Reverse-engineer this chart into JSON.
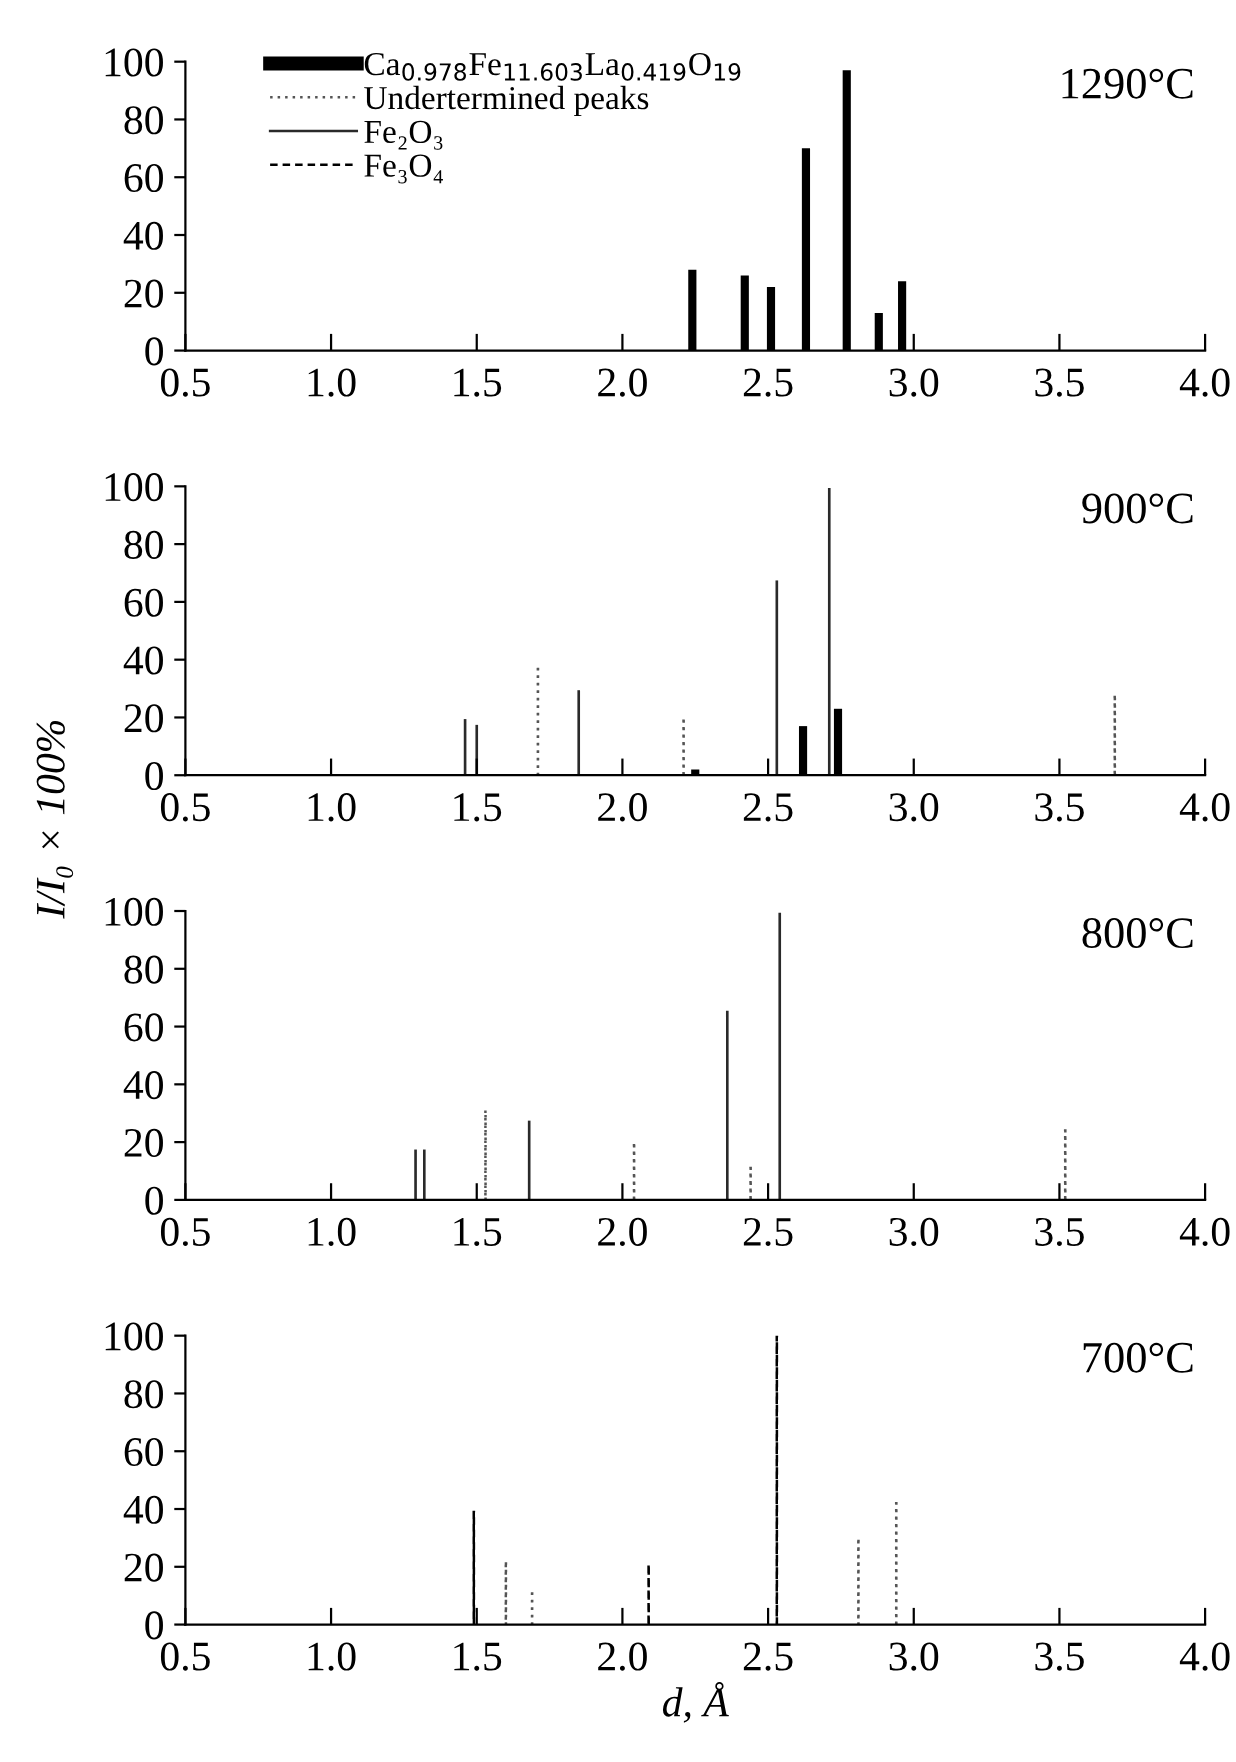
{
  "chart_data": [
    {
      "type": "bar",
      "annotations": [
        "1290°C"
      ],
      "xlim": [
        0.5,
        4.0
      ],
      "xticks": [
        0.5,
        {
          "value": 1,
          "label": "1.0"
        },
        1.5,
        {
          "value": 2,
          "label": "2.0"
        },
        2.5,
        {
          "value": 3,
          "label": "3.0"
        },
        3.5,
        {
          "value": 4,
          "label": "4.0"
        }
      ],
      "ylim": [
        0,
        100
      ],
      "yticks": [
        0,
        20,
        40,
        60,
        80,
        100
      ],
      "grid": false,
      "legend": "top left",
      "series": [
        {
          "name": "Ca$_{0.978}$Fe$_{11.603}$La$_{0.419}$O$_{19}$",
          "color": "#000000",
          "x": [
            2.24,
            2.42,
            2.51,
            2.63,
            2.77,
            2.88,
            2.96
          ],
          "values": [
            28,
            26,
            22,
            70,
            97,
            13,
            24
          ]
        },
        {
          "name": "Undertermined peaks",
          "line_style": "dotted",
          "color": "#555555"
        },
        {
          "name": "Fe₂O₃",
          "line_style": "solid",
          "color": "#2a2a2a"
        },
        {
          "name": "Fe₃O₄",
          "line_style": "dashed",
          "color": "#000000"
        }
      ]
    },
    {
      "type": "bar",
      "annotations": [
        "900°C"
      ],
      "ylabel": "I/I₀ × 100%",
      "xlim": [
        0.5,
        4.0
      ],
      "xticks": [
        0.5,
        {
          "value": 1,
          "label": "1.0"
        },
        1.5,
        {
          "value": 2,
          "label": "2.0"
        },
        2.5,
        {
          "value": 3,
          "label": "3.0"
        },
        3.5,
        {
          "value": 4,
          "label": "4.0"
        }
      ],
      "ylim": [
        0,
        100
      ],
      "yticks": [
        0,
        20,
        40,
        60,
        80,
        100
      ],
      "grid": false,
      "series": [
        {
          "color": "#000000",
          "x": [
            2.25,
            2.62,
            2.74
          ],
          "values": [
            2,
            17,
            23
          ]
        },
        {
          "line_style": "dotted",
          "color": "#555555",
          "x": [
            1.71,
            2.21,
            3.69
          ],
          "values": [
            38,
            20,
            28
          ]
        },
        {
          "line_style": "solid",
          "color": "#2a2a2a",
          "x": [
            1.46,
            1.5,
            1.85,
            2.53,
            2.71
          ],
          "values": [
            19,
            17,
            29,
            67,
            99
          ]
        }
      ]
    },
    {
      "type": "bar",
      "annotations": [
        "800°C"
      ],
      "xlim": [
        0.5,
        4.0
      ],
      "xticks": [
        0.5,
        {
          "value": 1,
          "label": "1.0"
        },
        1.5,
        {
          "value": 2,
          "label": "2.0"
        },
        2.5,
        {
          "value": 3,
          "label": "3.0"
        },
        3.5,
        {
          "value": 4,
          "label": "4.0"
        }
      ],
      "ylim": [
        0,
        100
      ],
      "yticks": [
        0,
        20,
        40,
        60,
        80,
        100
      ],
      "grid": false,
      "series": [
        {
          "line_style": "dotted",
          "color": "#555555",
          "x": [
            1.53,
            2.04,
            2.44,
            3.52
          ],
          "values": [
            31,
            20,
            11,
            24
          ]
        },
        {
          "line_style": "solid",
          "color": "#2a2a2a",
          "x": [
            1.29,
            1.32,
            1.68,
            2.36,
            2.54
          ],
          "values": [
            17,
            17,
            27,
            65,
            99
          ]
        }
      ]
    },
    {
      "type": "bar",
      "annotations": [
        "700°C"
      ],
      "xlabel": "d, Å",
      "xlim": [
        0.5,
        4.0
      ],
      "xticks": [
        0.5,
        {
          "value": 1,
          "label": "1.0"
        },
        1.5,
        {
          "value": 2,
          "label": "2.0"
        },
        2.5,
        {
          "value": 3,
          "label": "3.0"
        },
        3.5,
        {
          "value": 4,
          "label": "4.0"
        }
      ],
      "ylim": [
        0,
        100
      ],
      "yticks": [
        0,
        20,
        40,
        60,
        80,
        100
      ],
      "grid": false,
      "series": [
        {
          "line_style": "dotted",
          "color": "#555555",
          "x": [
            1.6,
            1.69,
            2.81,
            2.94
          ],
          "values": [
            22,
            12,
            30,
            42
          ]
        },
        {
          "line_style": "dashed",
          "color": "#000000",
          "x": [
            1.49,
            2.09,
            2.53
          ],
          "values": [
            39,
            21,
            100
          ]
        }
      ]
    }
  ]
}
